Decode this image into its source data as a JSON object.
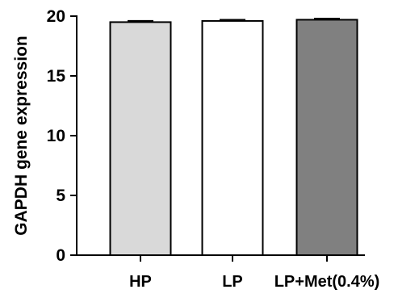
{
  "chart_data": {
    "type": "bar",
    "title": "",
    "xlabel": "",
    "ylabel": "GAPDH gene expression",
    "categories": [
      "HP",
      "LP",
      "LP+Met(0.4%)"
    ],
    "values": [
      19.5,
      19.6,
      19.7
    ],
    "errors": [
      0.1,
      0.1,
      0.1
    ],
    "ylim": [
      0,
      20
    ],
    "yticks": [
      0,
      5,
      10,
      15,
      20
    ],
    "grid": false,
    "legend": "none",
    "bar_colors": [
      "#d9d9d9",
      "#ffffff",
      "#808080"
    ],
    "edge_color": "#000000"
  }
}
